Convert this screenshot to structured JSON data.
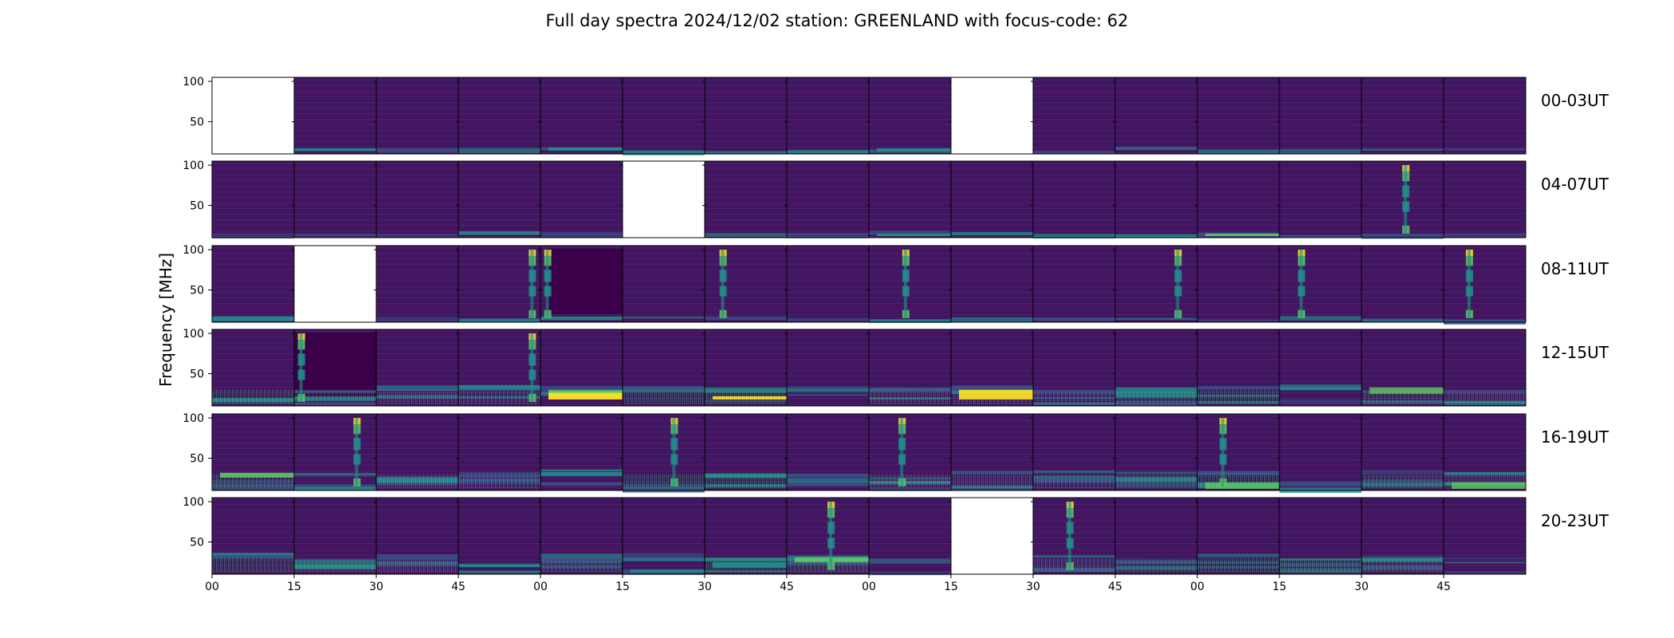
{
  "chart_data": {
    "type": "heatmap",
    "title": "Full day spectra 2024/12/02 station: GREENLAND with focus-code: 62",
    "ylabel": "Frequency [MHz]",
    "xlabel": "",
    "y_ticks": [
      "50",
      "100"
    ],
    "ylim": [
      10,
      105
    ],
    "x_tick_labels": [
      "00",
      "15",
      "30",
      "45",
      "00",
      "15",
      "30",
      "45",
      "00",
      "15",
      "30",
      "45",
      "00",
      "15",
      "30",
      "45"
    ],
    "rows": [
      {
        "label": "00-03UT",
        "missing": [
          0,
          9
        ]
      },
      {
        "label": "04-07UT",
        "missing": [
          5
        ]
      },
      {
        "label": "08-11UT",
        "missing": [
          1
        ]
      },
      {
        "label": "12-15UT",
        "missing": []
      },
      {
        "label": "16-19UT",
        "missing": []
      },
      {
        "label": "20-23UT",
        "missing": [
          9
        ]
      }
    ],
    "panels_per_row": 16,
    "panel_minutes": 15,
    "colormap": [
      "#440154",
      "#3b528b",
      "#21918c",
      "#5ec962",
      "#fde725"
    ]
  }
}
